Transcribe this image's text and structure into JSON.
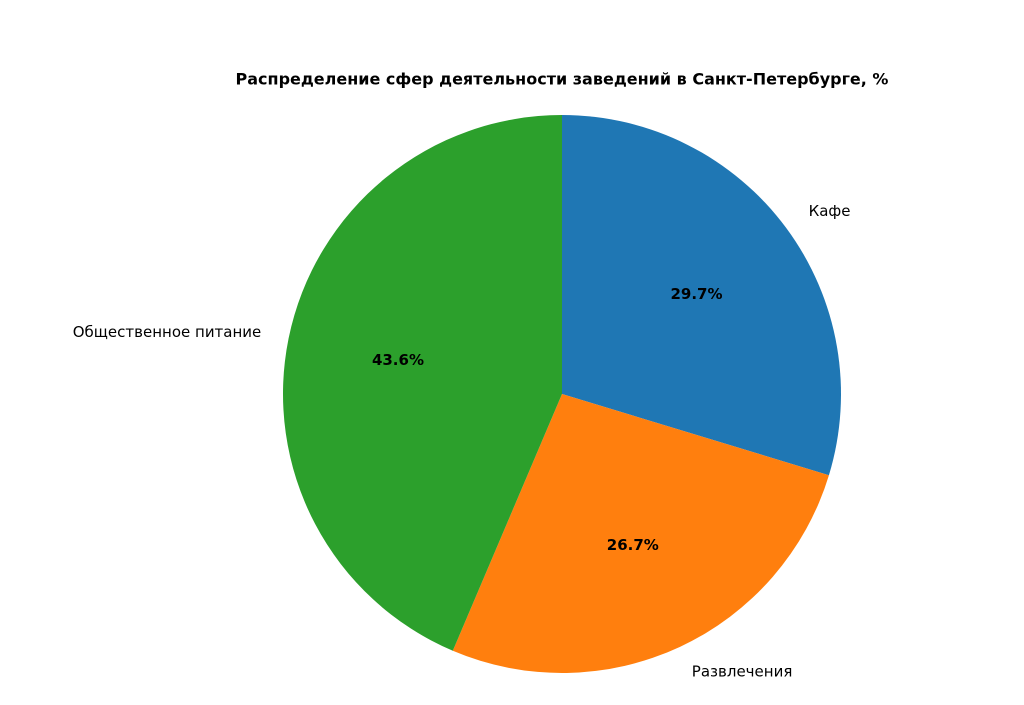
{
  "chart_data": {
    "type": "pie",
    "title": "Распределение сфер деятельности заведений в Санкт-Петербурге, %",
    "categories": [
      "Кафе",
      "Развлечения",
      "Общественное питание"
    ],
    "values": [
      29.7,
      26.7,
      43.6
    ],
    "value_labels": [
      "29.7%",
      "26.7%",
      "43.6%"
    ],
    "colors": [
      "#1f77b4",
      "#ff7f0e",
      "#2ca02c"
    ]
  }
}
